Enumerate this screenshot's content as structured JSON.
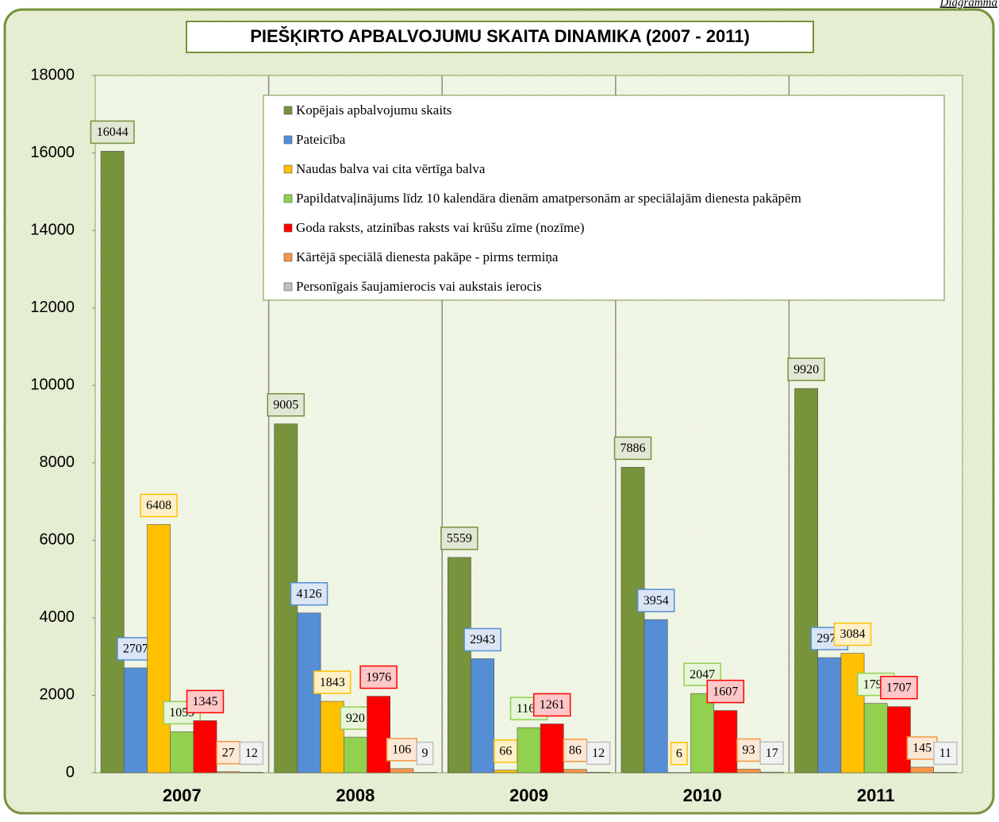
{
  "chart_data": {
    "type": "bar",
    "corner_label": "Diagramma",
    "title": "PIEŠĶIRTO APBALVOJUMU SKAITA DINAMIKA (2007 - 2011)",
    "categories": [
      "2007",
      "2008",
      "2009",
      "2010",
      "2011"
    ],
    "series": [
      {
        "name": "Kopējais apbalvojumu skaits",
        "color": "#77933c",
        "values": [
          16044,
          9005,
          5559,
          7886,
          9920
        ]
      },
      {
        "name": "Pateicība",
        "color": "#558ed5",
        "values": [
          2707,
          4126,
          2943,
          3954,
          2972
        ]
      },
      {
        "name": "Naudas balva vai cita vērtīga balva",
        "color": "#ffc000",
        "values": [
          6408,
          1843,
          66,
          6,
          3084
        ]
      },
      {
        "name": "Papildatvaļinājums līdz 10 kalendāra dienām amatpersonām ar speciālajām dienesta pakāpēm",
        "color": "#92d050",
        "values": [
          1059,
          920,
          1165,
          2047,
          1791
        ]
      },
      {
        "name": "Goda raksts, atzinības raksts vai krūšu zīme (nozīme)",
        "color": "#ff0000",
        "values": [
          1345,
          1976,
          1261,
          1607,
          1707
        ]
      },
      {
        "name": "Kārtējā speciālā dienesta pakāpe - pirms termiņa",
        "color": "#f79646",
        "values": [
          27,
          106,
          86,
          93,
          145
        ]
      },
      {
        "name": "Personīgais šaujamierocis vai aukstais ierocis",
        "color": "#bfbfbf",
        "values": [
          12,
          9,
          12,
          17,
          11
        ]
      }
    ],
    "ylim": [
      0,
      18000
    ],
    "yticks": [
      0,
      2000,
      4000,
      6000,
      8000,
      10000,
      12000,
      14000,
      16000,
      18000
    ],
    "legend": "top-right"
  }
}
